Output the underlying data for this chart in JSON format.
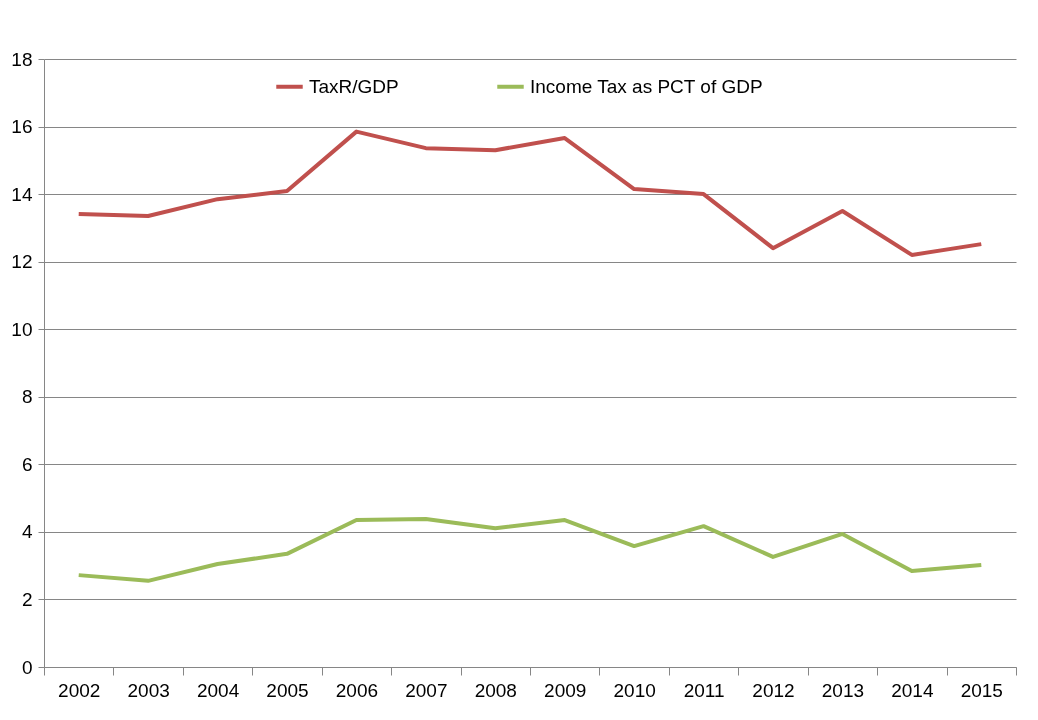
{
  "chart_data": {
    "type": "line",
    "categories": [
      "2002",
      "2003",
      "2004",
      "2005",
      "2006",
      "2007",
      "2008",
      "2009",
      "2010",
      "2011",
      "2012",
      "2013",
      "2014",
      "2015"
    ],
    "series": [
      {
        "name": "TaxR/GDP",
        "color": "#c0504d",
        "values": [
          13.41,
          13.35,
          13.85,
          14.09,
          15.85,
          15.36,
          15.3,
          15.66,
          14.15,
          14.0,
          12.4,
          13.5,
          12.2,
          12.52
        ]
      },
      {
        "name": "Income Tax as PCT of GDP",
        "color": "#9bbb59",
        "values": [
          2.72,
          2.55,
          3.05,
          3.35,
          4.35,
          4.38,
          4.11,
          4.35,
          3.58,
          4.17,
          3.26,
          3.94,
          2.84,
          3.02
        ]
      }
    ],
    "ylim": [
      0,
      18
    ],
    "yticks": [
      0,
      2,
      4,
      6,
      8,
      10,
      12,
      14,
      16,
      18
    ],
    "grid": "y",
    "legend": "top",
    "marker": "none",
    "line_style": "solid"
  }
}
